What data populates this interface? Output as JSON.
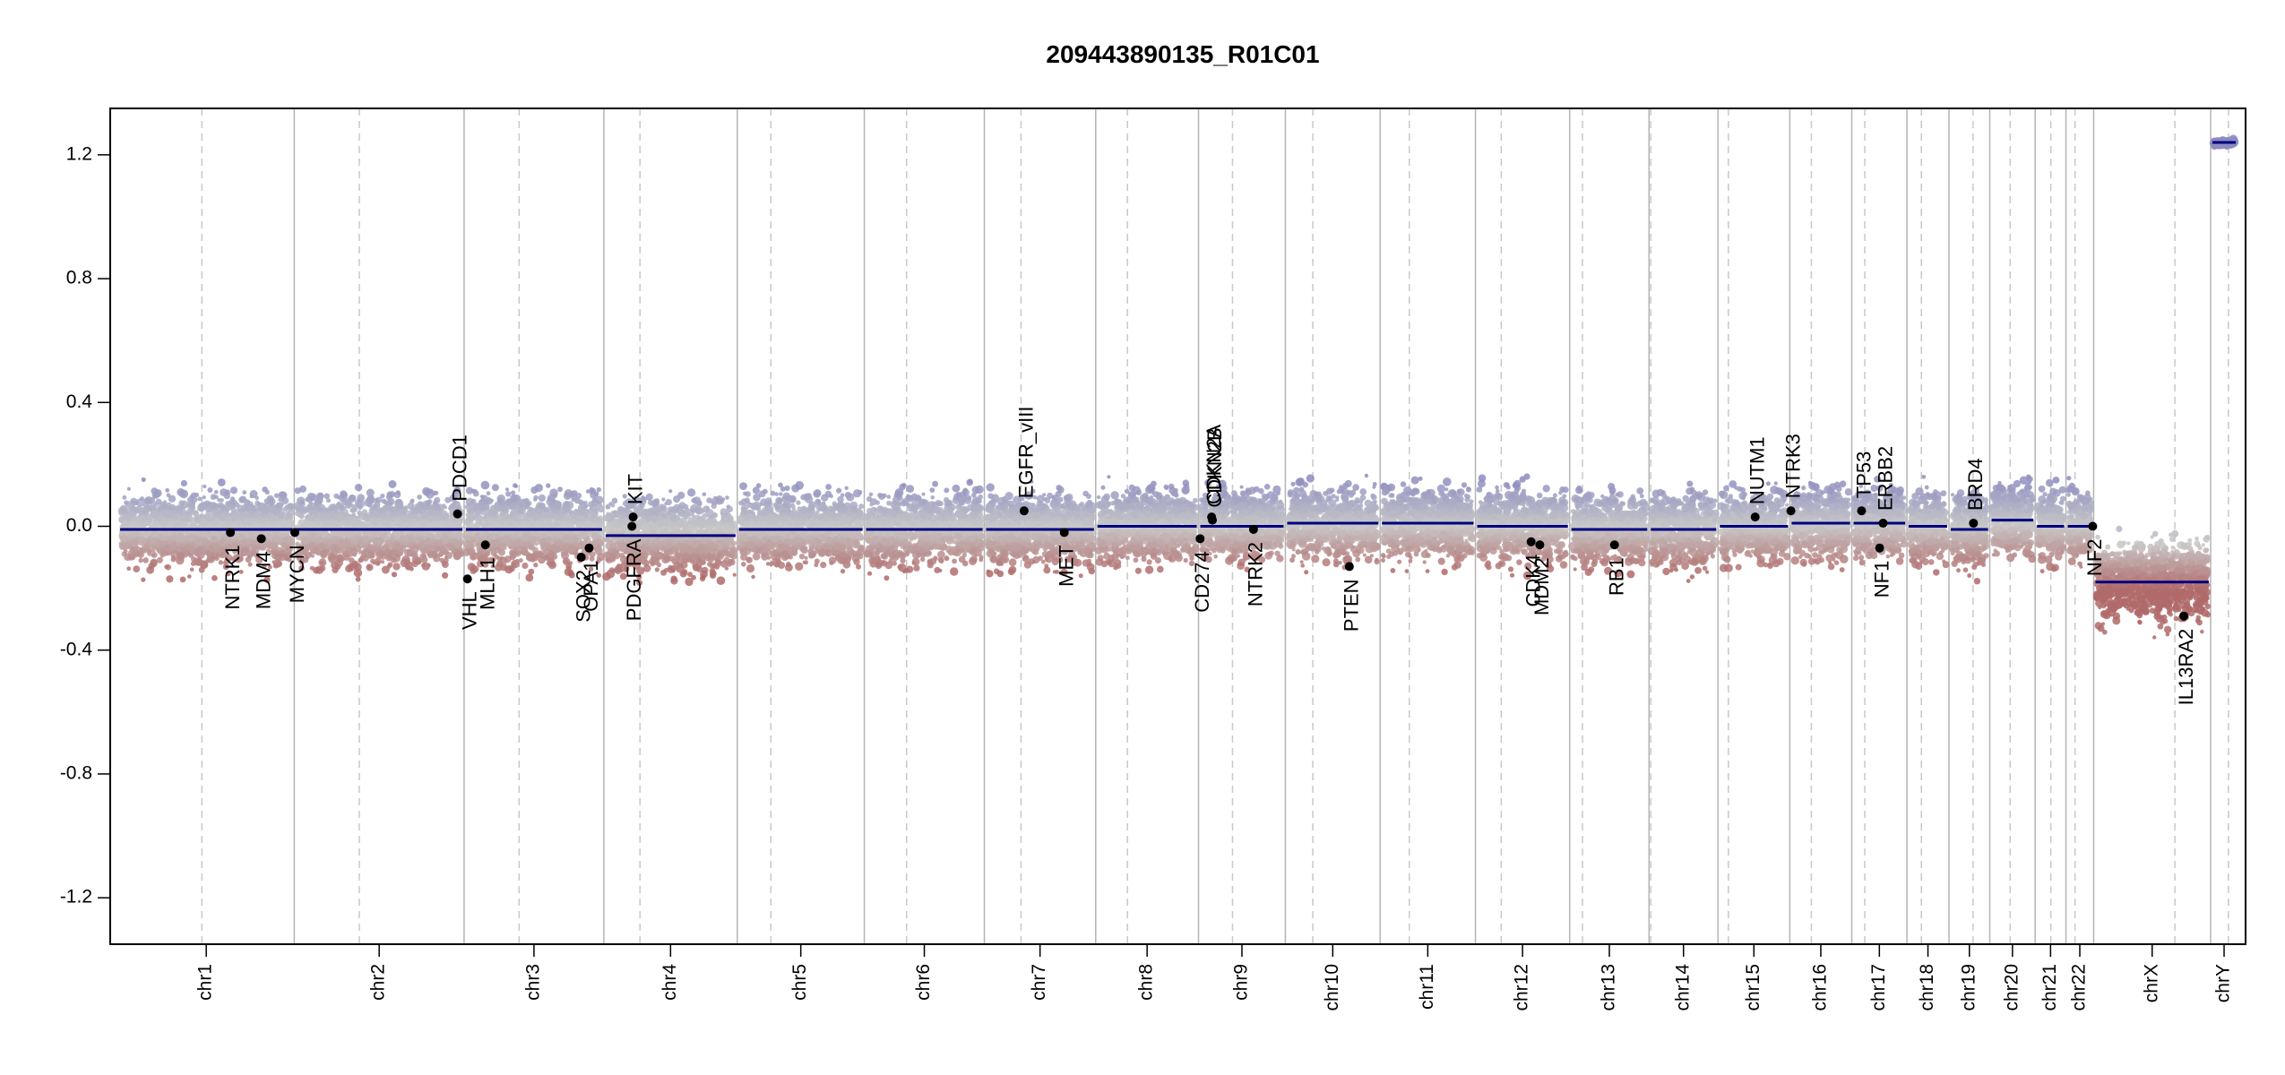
{
  "chart_data": {
    "type": "scatter",
    "title": "209443890135_R01C01",
    "xlabel": "",
    "ylabel": "",
    "ylim": [
      -1.35,
      1.35
    ],
    "yticks": [
      -1.2,
      -0.8,
      -0.4,
      0.0,
      0.4,
      0.8,
      1.2
    ],
    "ytick_labels": [
      "-1.2",
      "-0.8",
      "-0.4",
      "0.0",
      "0.4",
      "0.8",
      "1.2"
    ],
    "grid": false,
    "colors": {
      "segment": "#000080",
      "gain": "#8c8cc0",
      "loss": "#b06a6a",
      "neutral": "#c8c8c8",
      "gene_point": "#000000",
      "solid_line": "#b4b4b4",
      "dashed_line": "#c8c8c8"
    },
    "chromosomes": [
      {
        "name": "chr1",
        "start": 0,
        "end": 0.1315,
        "centromere": 0.0625,
        "segment": -0.01,
        "spread": 0.12
      },
      {
        "name": "chr2",
        "start": 0.1315,
        "end": 0.2584,
        "centromere": 0.1801,
        "segment": -0.01,
        "spread": 0.12
      },
      {
        "name": "chr3",
        "start": 0.2584,
        "end": 0.3628,
        "centromere": 0.2995,
        "segment": -0.01,
        "spread": 0.12
      },
      {
        "name": "chr4",
        "start": 0.3628,
        "end": 0.4625,
        "centromere": 0.3898,
        "segment": -0.03,
        "spread": 0.12
      },
      {
        "name": "chr5",
        "start": 0.4625,
        "end": 0.5574,
        "centromere": 0.4876,
        "segment": -0.01,
        "spread": 0.12
      },
      {
        "name": "chr6",
        "start": 0.5574,
        "end": 0.6471,
        "centromere": 0.589,
        "segment": -0.01,
        "spread": 0.12
      },
      {
        "name": "chr7",
        "start": 0.6471,
        "end": 0.7303,
        "centromere": 0.6745,
        "segment": -0.01,
        "spread": 0.12
      },
      {
        "name": "chr8",
        "start": 0.7303,
        "end": 0.8071,
        "centromere": 0.754,
        "segment": 0.0,
        "spread": 0.12
      },
      {
        "name": "chr9",
        "start": 0.8071,
        "end": 0.872,
        "centromere": 0.8325,
        "segment": 0.0,
        "spread": 0.12
      },
      {
        "name": "chr10",
        "start": 0.872,
        "end": 0.9428,
        "centromere": 0.8925,
        "segment": 0.01,
        "spread": 0.12
      },
      {
        "name": "chr11",
        "start": 0.9428,
        "end": 1.014,
        "centromere": 0.9646,
        "segment": 0.01,
        "spread": 0.12
      },
      {
        "name": "chr12",
        "start": 1.014,
        "end": 1.0844,
        "centromere": 1.0333,
        "segment": 0.0,
        "spread": 0.12
      },
      {
        "name": "chr13",
        "start": 1.0844,
        "end": 1.1437,
        "centromere": 1.094,
        "segment": -0.01,
        "spread": 0.12
      },
      {
        "name": "chr14",
        "start": 1.1437,
        "end": 1.1952,
        "centromere": 1.145,
        "segment": -0.01,
        "spread": 0.12
      },
      {
        "name": "chr15",
        "start": 1.1952,
        "end": 1.2489,
        "centromere": 1.203,
        "segment": 0.0,
        "spread": 0.12
      },
      {
        "name": "chr16",
        "start": 1.2489,
        "end": 1.2952,
        "centromere": 1.265,
        "segment": 0.01,
        "spread": 0.12
      },
      {
        "name": "chr17",
        "start": 1.2952,
        "end": 1.3364,
        "centromere": 1.3049,
        "segment": 0.01,
        "spread": 0.12
      },
      {
        "name": "chr18",
        "start": 1.3364,
        "end": 1.3678,
        "centromere": 1.3472,
        "segment": 0.0,
        "spread": 0.12
      },
      {
        "name": "chr19",
        "start": 1.3678,
        "end": 1.3983,
        "centromere": 1.3858,
        "segment": -0.01,
        "spread": 0.12
      },
      {
        "name": "chr20",
        "start": 1.3983,
        "end": 1.4322,
        "centromere": 1.4135,
        "segment": 0.02,
        "spread": 0.12
      },
      {
        "name": "chr21",
        "start": 1.4322,
        "end": 1.4552,
        "centromere": 1.4439,
        "segment": 0.0,
        "spread": 0.12
      },
      {
        "name": "chr22",
        "start": 1.4552,
        "end": 1.4759,
        "centromere": 1.462,
        "segment": 0.0,
        "spread": 0.12
      },
      {
        "name": "chrX",
        "start": 1.4759,
        "end": 1.5633,
        "centromere": 1.5366,
        "segment": -0.18,
        "spread": 0.14
      },
      {
        "name": "chrY",
        "start": 1.5633,
        "end": 1.5834,
        "centromere": 1.5766,
        "segment": 1.24,
        "spread": 0.01
      }
    ],
    "genes": [
      {
        "name": "NTRK1",
        "x": 0.0838,
        "y": -0.02,
        "side": "below"
      },
      {
        "name": "MDM4",
        "x": 0.1069,
        "y": -0.04,
        "side": "below"
      },
      {
        "name": "MYCN",
        "x": 0.1319,
        "y": -0.02,
        "side": "below"
      },
      {
        "name": "PDCD1",
        "x": 0.2535,
        "y": 0.04,
        "side": "above"
      },
      {
        "name": "VHL",
        "x": 0.2609,
        "y": -0.17,
        "side": "below"
      },
      {
        "name": "MLH1",
        "x": 0.2743,
        "y": -0.06,
        "side": "below"
      },
      {
        "name": "SOX2",
        "x": 0.3459,
        "y": -0.1,
        "side": "below"
      },
      {
        "name": "OPA1",
        "x": 0.3518,
        "y": -0.07,
        "side": "below"
      },
      {
        "name": "KIT",
        "x": 0.3847,
        "y": 0.03,
        "side": "above"
      },
      {
        "name": "PDGFRA",
        "x": 0.3838,
        "y": 0.0,
        "side": "below"
      },
      {
        "name": "EGFR_vIII",
        "x": 0.6768,
        "y": 0.05,
        "side": "above"
      },
      {
        "name": "MET",
        "x": 0.7068,
        "y": -0.02,
        "side": "below"
      },
      {
        "name": "CD274",
        "x": 0.8083,
        "y": -0.04,
        "side": "below"
      },
      {
        "name": "CDKN2A",
        "x": 0.8169,
        "y": 0.03,
        "side": "above"
      },
      {
        "name": "CDKN2B",
        "x": 0.8175,
        "y": 0.02,
        "side": "above"
      },
      {
        "name": "NTRK2",
        "x": 0.8482,
        "y": -0.01,
        "side": "below"
      },
      {
        "name": "PTEN",
        "x": 0.9198,
        "y": -0.13,
        "side": "below"
      },
      {
        "name": "CDK4",
        "x": 1.0556,
        "y": -0.05,
        "side": "below"
      },
      {
        "name": "MDM2",
        "x": 1.0621,
        "y": -0.06,
        "side": "below"
      },
      {
        "name": "RB1",
        "x": 1.1179,
        "y": -0.06,
        "side": "below"
      },
      {
        "name": "NUTM1",
        "x": 1.223,
        "y": 0.03,
        "side": "above"
      },
      {
        "name": "NTRK3",
        "x": 1.2497,
        "y": 0.05,
        "side": "above"
      },
      {
        "name": "TP53",
        "x": 1.3025,
        "y": 0.05,
        "side": "above"
      },
      {
        "name": "ERBB2",
        "x": 1.3186,
        "y": 0.01,
        "side": "above"
      },
      {
        "name": "NF1",
        "x": 1.316,
        "y": -0.07,
        "side": "below"
      },
      {
        "name": "BRD4",
        "x": 1.3861,
        "y": 0.01,
        "side": "above"
      },
      {
        "name": "NF2",
        "x": 1.4752,
        "y": 0.0,
        "side": "below"
      },
      {
        "name": "IL13RA2",
        "x": 1.5433,
        "y": -0.29,
        "side": "below"
      }
    ]
  }
}
